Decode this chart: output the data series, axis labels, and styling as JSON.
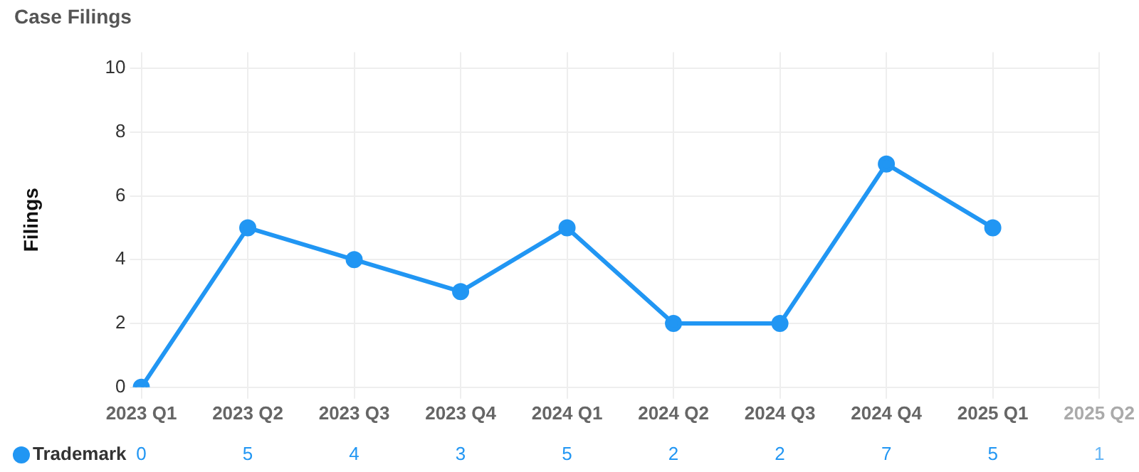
{
  "chart_data": {
    "type": "line",
    "title": "Case Filings",
    "ylabel": "Filings",
    "categories": [
      "2023 Q1",
      "2023 Q2",
      "2023 Q3",
      "2023 Q4",
      "2024 Q1",
      "2024 Q2",
      "2024 Q3",
      "2024 Q4",
      "2025 Q1",
      "2025 Q2"
    ],
    "series": [
      {
        "name": "Trademark",
        "color": "#2196f3",
        "values": [
          0,
          5,
          4,
          3,
          5,
          2,
          2,
          7,
          5,
          null
        ],
        "value_labels": [
          "0",
          "5",
          "4",
          "3",
          "5",
          "2",
          "2",
          "7",
          "5",
          "1"
        ]
      }
    ],
    "ylim": [
      0,
      10.5
    ],
    "yticks": [
      0,
      2,
      4,
      6,
      8,
      10
    ],
    "grid": true,
    "legend": "bottom left",
    "marker": "circle",
    "line_style": "solid"
  }
}
